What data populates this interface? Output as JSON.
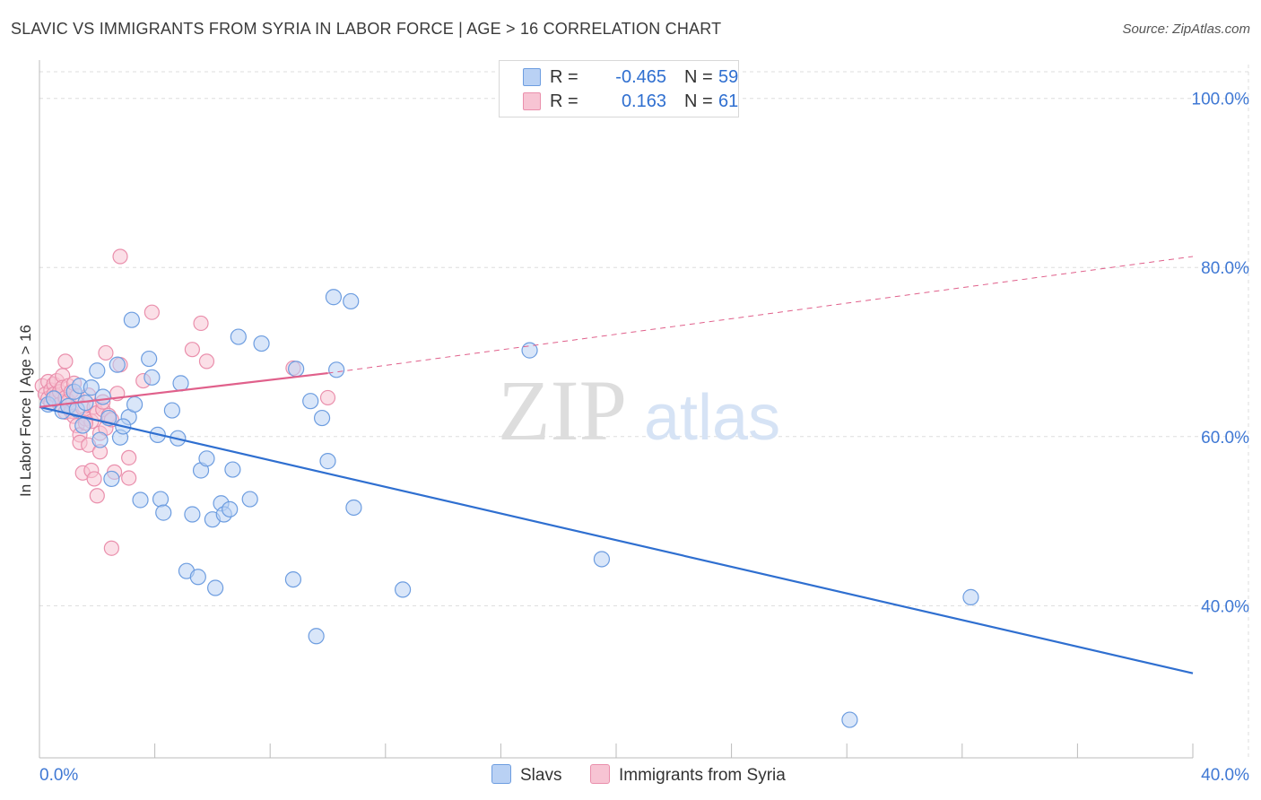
{
  "header": {
    "title": "SLAVIC VS IMMIGRANTS FROM SYRIA IN LABOR FORCE | AGE > 16 CORRELATION CHART",
    "source": "Source: ZipAtlas.com"
  },
  "watermark": {
    "zip": "ZIP",
    "atlas": "atlas"
  },
  "colors": {
    "slavs_fill": "#b9d1f4",
    "slavs_stroke": "#6d9de0",
    "slavs_line": "#2f6fd0",
    "syria_fill": "#f7c4d3",
    "syria_stroke": "#ea8fac",
    "syria_line": "#e0608b",
    "tick_label": "#3f78d4",
    "grid": "#dddddd"
  },
  "legend": {
    "rows": [
      {
        "r_label": "R =",
        "r_value": "-0.465",
        "n_label": "N =",
        "n_value": "59"
      },
      {
        "r_label": "R =",
        "r_value": "0.163",
        "n_label": "N =",
        "n_value": "61"
      }
    ]
  },
  "bottom_legend": {
    "slavs": "Slavs",
    "syria": "Immigrants from Syria"
  },
  "chart_data": {
    "type": "scatter",
    "title": "SLAVIC VS IMMIGRANTS FROM SYRIA IN LABOR FORCE | AGE > 16 CORRELATION CHART",
    "ylabel": "In Labor Force | Age > 16",
    "xlabel": "",
    "xlim": [
      0,
      40
    ],
    "ylim": [
      22,
      104
    ],
    "x_tick_labels": [
      "0.0%",
      "40.0%"
    ],
    "y_ticks": [
      40,
      60,
      80,
      100
    ],
    "y_tick_labels": [
      "40.0%",
      "60.0%",
      "80.0%",
      "100.0%"
    ],
    "grid": true,
    "legend_position": "top-center",
    "series": [
      {
        "name": "Slavs",
        "r": -0.465,
        "n": 59,
        "trend": {
          "x": [
            0,
            40
          ],
          "y": [
            63.5,
            32.0
          ],
          "dashed_extension": false
        },
        "points": [
          [
            0.3,
            63.8
          ],
          [
            0.5,
            64.5
          ],
          [
            0.8,
            63.0
          ],
          [
            1.0,
            63.6
          ],
          [
            1.3,
            63.2
          ],
          [
            1.2,
            65.3
          ],
          [
            1.5,
            61.3
          ],
          [
            1.4,
            66.0
          ],
          [
            1.8,
            65.8
          ],
          [
            2.1,
            59.6
          ],
          [
            2.0,
            67.8
          ],
          [
            2.2,
            64.7
          ],
          [
            2.4,
            62.2
          ],
          [
            2.5,
            55.0
          ],
          [
            2.7,
            68.5
          ],
          [
            2.8,
            59.9
          ],
          [
            3.1,
            62.3
          ],
          [
            3.2,
            73.8
          ],
          [
            3.3,
            63.8
          ],
          [
            3.5,
            52.5
          ],
          [
            3.8,
            69.2
          ],
          [
            3.9,
            67.0
          ],
          [
            4.1,
            60.2
          ],
          [
            4.2,
            52.6
          ],
          [
            4.3,
            51.0
          ],
          [
            4.6,
            63.1
          ],
          [
            4.8,
            59.8
          ],
          [
            4.9,
            66.3
          ],
          [
            5.1,
            44.1
          ],
          [
            5.3,
            50.8
          ],
          [
            5.5,
            43.4
          ],
          [
            5.6,
            56.0
          ],
          [
            5.8,
            57.4
          ],
          [
            6.0,
            50.2
          ],
          [
            6.1,
            42.1
          ],
          [
            6.3,
            52.1
          ],
          [
            6.4,
            50.8
          ],
          [
            6.6,
            51.4
          ],
          [
            6.7,
            56.1
          ],
          [
            6.9,
            71.8
          ],
          [
            7.3,
            52.6
          ],
          [
            7.7,
            71.0
          ],
          [
            8.8,
            43.1
          ],
          [
            8.9,
            68.0
          ],
          [
            9.4,
            64.2
          ],
          [
            9.6,
            36.4
          ],
          [
            9.8,
            62.2
          ],
          [
            10.0,
            57.1
          ],
          [
            10.2,
            76.5
          ],
          [
            10.3,
            67.9
          ],
          [
            10.8,
            76.0
          ],
          [
            10.9,
            51.6
          ],
          [
            12.6,
            41.9
          ],
          [
            17.0,
            70.2
          ],
          [
            19.5,
            45.5
          ],
          [
            32.3,
            41.0
          ],
          [
            28.1,
            26.5
          ],
          [
            1.6,
            64.0
          ],
          [
            2.9,
            61.2
          ]
        ]
      },
      {
        "name": "Immigrants from Syria",
        "r": 0.163,
        "n": 61,
        "trend": {
          "x": [
            0,
            10
          ],
          "y": [
            63.5,
            67.5
          ],
          "dashed_extension": true,
          "extension_to": [
            40,
            81.3
          ]
        },
        "points": [
          [
            0.1,
            66.0
          ],
          [
            0.2,
            65.0
          ],
          [
            0.3,
            64.5
          ],
          [
            0.3,
            66.5
          ],
          [
            0.4,
            65.5
          ],
          [
            0.4,
            64.0
          ],
          [
            0.5,
            66.2
          ],
          [
            0.5,
            65.0
          ],
          [
            0.6,
            64.8
          ],
          [
            0.6,
            66.6
          ],
          [
            0.7,
            65.3
          ],
          [
            0.7,
            63.8
          ],
          [
            0.8,
            67.2
          ],
          [
            0.8,
            65.8
          ],
          [
            0.9,
            64.6
          ],
          [
            0.9,
            62.9
          ],
          [
            0.9,
            68.9
          ],
          [
            1.0,
            66.0
          ],
          [
            1.0,
            64.2
          ],
          [
            1.1,
            65.3
          ],
          [
            1.1,
            63.0
          ],
          [
            1.2,
            66.3
          ],
          [
            1.2,
            62.4
          ],
          [
            1.3,
            64.8
          ],
          [
            1.3,
            61.3
          ],
          [
            1.4,
            60.2
          ],
          [
            1.4,
            59.3
          ],
          [
            1.5,
            63.4
          ],
          [
            1.5,
            55.7
          ],
          [
            1.6,
            62.1
          ],
          [
            1.7,
            64.9
          ],
          [
            1.7,
            59.0
          ],
          [
            1.8,
            61.8
          ],
          [
            1.8,
            56.0
          ],
          [
            1.9,
            63.5
          ],
          [
            1.9,
            55.0
          ],
          [
            2.0,
            62.8
          ],
          [
            2.0,
            53.0
          ],
          [
            2.1,
            58.2
          ],
          [
            2.1,
            60.4
          ],
          [
            2.2,
            63.2
          ],
          [
            2.2,
            64.1
          ],
          [
            2.3,
            61.0
          ],
          [
            2.3,
            69.9
          ],
          [
            2.4,
            62.5
          ],
          [
            2.5,
            46.8
          ],
          [
            2.6,
            55.8
          ],
          [
            2.7,
            65.1
          ],
          [
            2.8,
            68.5
          ],
          [
            2.8,
            81.3
          ],
          [
            3.1,
            57.5
          ],
          [
            3.1,
            55.1
          ],
          [
            3.6,
            66.6
          ],
          [
            3.9,
            74.7
          ],
          [
            5.3,
            70.3
          ],
          [
            5.6,
            73.4
          ],
          [
            5.8,
            68.9
          ],
          [
            8.8,
            68.1
          ],
          [
            10.0,
            64.6
          ],
          [
            2.5,
            62.0
          ],
          [
            1.6,
            61.6
          ]
        ]
      }
    ]
  }
}
